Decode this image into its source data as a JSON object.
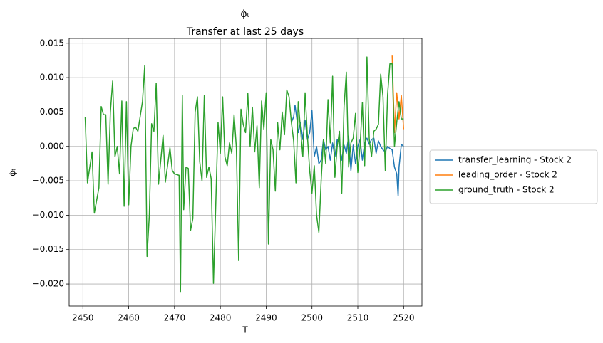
{
  "chart_data": {
    "type": "line",
    "title": "φ̇ₜ",
    "subtitle": "Transfer at last 25 days",
    "xlabel": "T",
    "ylabel": "φ̇ₜ",
    "xlim": [
      2447,
      2524
    ],
    "ylim": [
      -0.0232,
      0.0157
    ],
    "xticks": [
      2450,
      2460,
      2470,
      2480,
      2490,
      2500,
      2510,
      2520
    ],
    "yticks": [
      {
        "value": 0.015,
        "label": "0.015"
      },
      {
        "value": 0.01,
        "label": "0.010"
      },
      {
        "value": 0.005,
        "label": "0.005"
      },
      {
        "value": 0,
        "label": "0.000"
      },
      {
        "value": -0.005,
        "label": "−0.005"
      },
      {
        "value": -0.01,
        "label": "−0.010"
      },
      {
        "value": -0.015,
        "label": "−0.015"
      },
      {
        "value": -0.02,
        "label": "−0.020"
      }
    ],
    "grid": true,
    "legend": "outside right",
    "series": [
      {
        "name": "transfer_learning - Stock 2",
        "color": "#1f77b4",
        "x": [
          2495.5,
          2496,
          2496.3,
          2496.7,
          2497,
          2497.5,
          2498,
          2498.5,
          2499,
          2499.5,
          2500,
          2500.5,
          2501,
          2501.5,
          2502,
          2502.5,
          2503,
          2503.5,
          2504,
          2504.5,
          2505,
          2505.5,
          2506,
          2506.5,
          2507,
          2507.5,
          2508,
          2508.5,
          2509,
          2509.5,
          2510,
          2510.5,
          2511,
          2511.5,
          2512,
          2512.5,
          2513,
          2513.5,
          2514,
          2514.5,
          2515,
          2515.5,
          2516,
          2516.5,
          2517,
          2517.5,
          2518,
          2518.5,
          2518.8,
          2519,
          2519.5,
          2520
        ],
        "values": [
          0.0035,
          0.0043,
          0.006,
          0.004,
          0.002,
          0.0035,
          0.001,
          0.0038,
          0.001,
          0.002,
          0.0052,
          -0.0015,
          0.0,
          -0.0025,
          -0.002,
          0.001,
          -0.0005,
          0.0,
          -0.002,
          0.0005,
          -0.0015,
          0.001,
          0.0005,
          -0.002,
          0.0002,
          -0.001,
          0.0015,
          -0.0035,
          0.0002,
          -0.0025,
          0.0,
          0.001,
          -0.002,
          0.0005,
          0.0012,
          0.0003,
          0.001,
          0.0012,
          -0.001,
          0.0008,
          0.0,
          -0.0005,
          -0.0008,
          0.0,
          -0.0003,
          -0.0005,
          -0.003,
          -0.004,
          -0.0072,
          -0.003,
          0.0003,
          0.0
        ]
      },
      {
        "name": "leading_order - Stock 2",
        "color": "#ff7f0e",
        "x": [
          2517.5,
          2518,
          2518.5,
          2519,
          2519.5,
          2520
        ],
        "values": [
          0.0133,
          0.002,
          0.0078,
          0.004,
          0.0074,
          0.0025
        ]
      },
      {
        "name": "ground_truth - Stock 2",
        "color": "#2ca02c",
        "x": [
          2450.5,
          2451,
          2452,
          2452.5,
          2453.5,
          2454,
          2454.5,
          2455,
          2455.5,
          2456,
          2456.5,
          2457,
          2457.5,
          2458,
          2458.5,
          2459,
          2459.5,
          2460,
          2460.5,
          2461,
          2461.5,
          2462,
          2463,
          2463.5,
          2464,
          2464.5,
          2465,
          2465.5,
          2466,
          2466.5,
          2467,
          2467.5,
          2468,
          2469,
          2469.5,
          2470,
          2471,
          2471.3,
          2471.7,
          2472,
          2472.5,
          2473,
          2473.5,
          2474,
          2474.5,
          2475,
          2475.5,
          2476,
          2476.5,
          2477,
          2477.5,
          2478,
          2478.5,
          2479,
          2479.5,
          2480,
          2480.5,
          2481,
          2481.5,
          2482,
          2482.5,
          2483,
          2483.5,
          2484,
          2484.5,
          2485,
          2485.5,
          2486,
          2486.5,
          2487,
          2487.5,
          2488,
          2488.5,
          2489,
          2489.5,
          2490,
          2490.5,
          2491,
          2491.5,
          2492,
          2492.5,
          2493,
          2493.5,
          2494,
          2494.5,
          2495,
          2495.5,
          2496,
          2496.5,
          2497,
          2497.5,
          2498,
          2498.5,
          2499,
          2499.5,
          2500,
          2500.5,
          2501,
          2501.5,
          2502,
          2502.5,
          2503,
          2503.5,
          2504,
          2504.5,
          2505,
          2505.5,
          2506,
          2506.5,
          2507,
          2507.5,
          2508,
          2508.5,
          2509,
          2509.5,
          2510,
          2510.5,
          2511,
          2511.5,
          2512,
          2512.5,
          2513,
          2513.5,
          2514,
          2514.5,
          2515,
          2515.5,
          2516,
          2516.5,
          2517,
          2517.5,
          2518,
          2518.5,
          2519,
          2519.5,
          2520
        ],
        "values": [
          0.0043,
          -0.0053,
          -0.0008,
          -0.0097,
          -0.006,
          0.0058,
          0.0046,
          0.0046,
          -0.0055,
          0.005,
          0.0095,
          -0.0015,
          0.0,
          -0.004,
          0.0066,
          -0.0087,
          0.0065,
          -0.0085,
          0.0,
          0.0026,
          0.0028,
          0.0022,
          0.0065,
          0.0118,
          -0.016,
          -0.01,
          0.0033,
          0.0022,
          0.0092,
          -0.0055,
          -0.002,
          0.0016,
          -0.0052,
          -0.0002,
          -0.0035,
          -0.004,
          -0.0042,
          -0.0212,
          0.0074,
          -0.0092,
          -0.003,
          -0.0032,
          -0.0122,
          -0.0105,
          0.005,
          0.0072,
          -0.0022,
          -0.005,
          0.0074,
          -0.0045,
          -0.003,
          -0.0047,
          -0.0199,
          -0.0085,
          0.0035,
          -0.001,
          0.0072,
          -0.0015,
          -0.0028,
          0.0005,
          -0.001,
          0.0046,
          -0.0002,
          -0.0166,
          0.0054,
          0.0032,
          0.002,
          0.0077,
          0.0,
          0.0057,
          -0.0008,
          0.003,
          -0.006,
          0.0066,
          0.0025,
          0.0078,
          -0.0142,
          0.001,
          -0.0005,
          -0.0065,
          0.0035,
          -0.0005,
          0.005,
          0.0017,
          0.0082,
          0.0072,
          0.0035,
          0.0008,
          -0.0053,
          0.0065,
          0.0025,
          -0.0015,
          0.0078,
          0.0015,
          -0.0035,
          -0.0068,
          -0.0028,
          -0.01,
          -0.0125,
          -0.005,
          0.001,
          -0.0025,
          0.0068,
          0.0005,
          0.0102,
          -0.0045,
          0.0,
          0.0022,
          -0.0068,
          0.0058,
          0.0108,
          -0.003,
          0.0005,
          0.0012,
          0.0048,
          -0.0038,
          0.0,
          0.0064,
          -0.0028,
          0.013,
          0.001,
          -0.0015,
          0.0022,
          0.0025,
          0.0032,
          0.0105,
          0.0072,
          -0.0035,
          0.0075,
          0.012,
          0.012,
          0.0,
          0.0035,
          0.0065,
          0.004,
          0.004
        ]
      }
    ]
  }
}
